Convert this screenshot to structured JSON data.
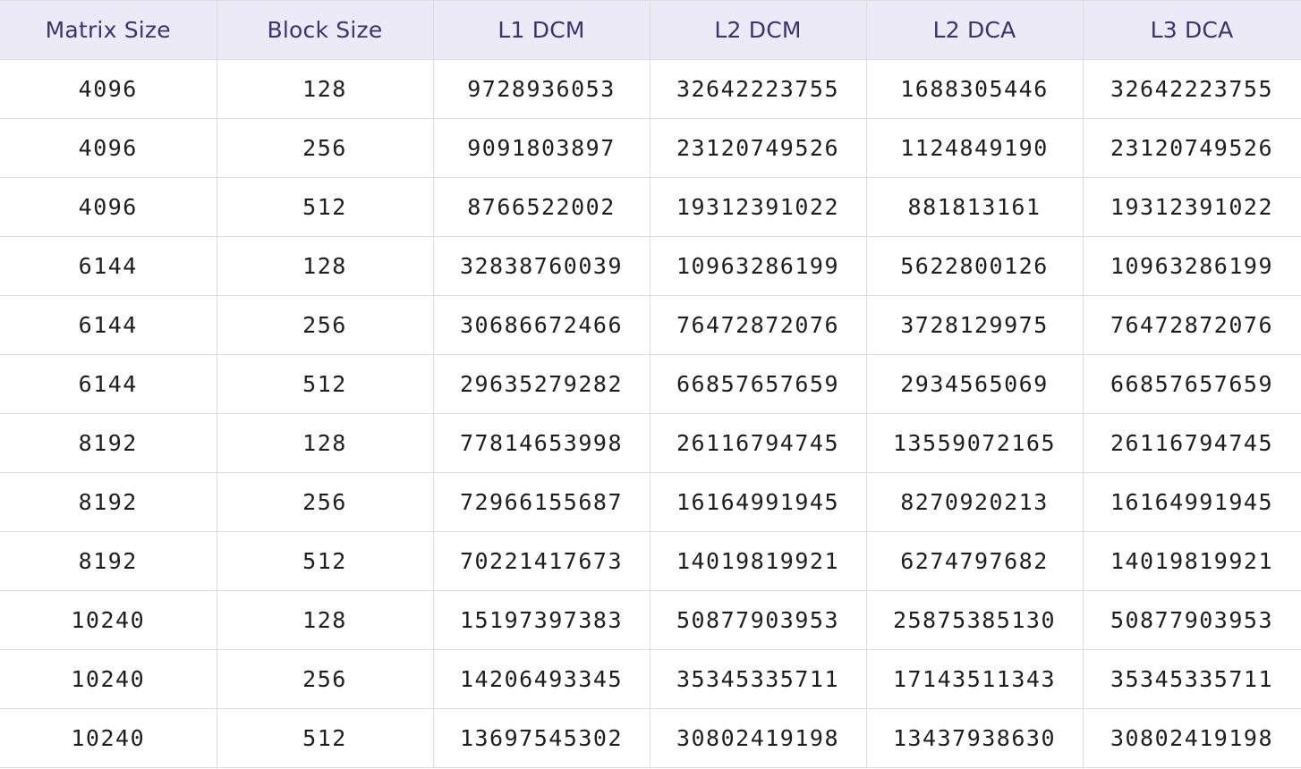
{
  "table": {
    "headers": [
      "Matrix Size",
      "Block Size",
      "L1 DCM",
      "L2 DCM",
      "L2 DCA",
      "L3 DCA"
    ],
    "rows": [
      [
        "4096",
        "128",
        "9728936053",
        "32642223755",
        "1688305446",
        "32642223755"
      ],
      [
        "4096",
        "256",
        "9091803897",
        "23120749526",
        "1124849190",
        "23120749526"
      ],
      [
        "4096",
        "512",
        "8766522002",
        "19312391022",
        "881813161",
        "19312391022"
      ],
      [
        "6144",
        "128",
        "32838760039",
        "10963286199",
        "5622800126",
        "10963286199"
      ],
      [
        "6144",
        "256",
        "30686672466",
        "76472872076",
        "3728129975",
        "76472872076"
      ],
      [
        "6144",
        "512",
        "29635279282",
        "66857657659",
        "2934565069",
        "66857657659"
      ],
      [
        "8192",
        "128",
        "77814653998",
        "26116794745",
        "13559072165",
        "26116794745"
      ],
      [
        "8192",
        "256",
        "72966155687",
        "16164991945",
        "8270920213",
        "16164991945"
      ],
      [
        "8192",
        "512",
        "70221417673",
        "14019819921",
        "6274797682",
        "14019819921"
      ],
      [
        "10240",
        "128",
        "15197397383",
        "50877903953",
        "25875385130",
        "50877903953"
      ],
      [
        "10240",
        "256",
        "14206493345",
        "35345335711",
        "17143511343",
        "35345335711"
      ],
      [
        "10240",
        "512",
        "13697545302",
        "30802419198",
        "13437938630",
        "30802419198"
      ]
    ]
  }
}
